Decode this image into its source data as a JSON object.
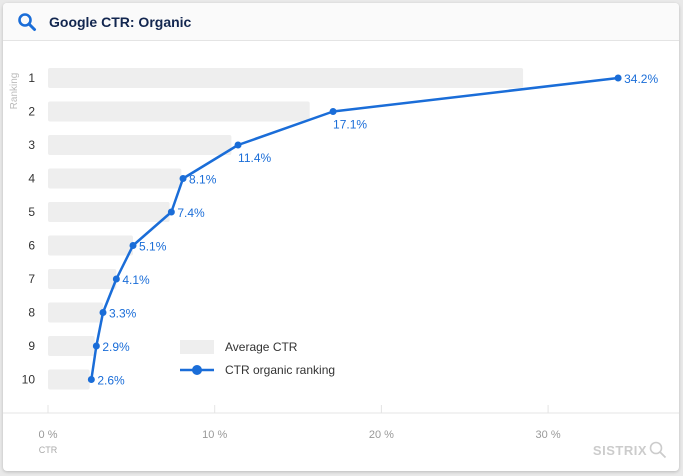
{
  "header": {
    "title": "Google CTR: Organic",
    "icon": "search-icon"
  },
  "brand": {
    "label": "SISTRIX",
    "icon": "magnifier-icon"
  },
  "chart_data": {
    "type": "bar+line",
    "orientation": "horizontal",
    "categories": [
      "1",
      "2",
      "3",
      "4",
      "5",
      "6",
      "7",
      "8",
      "9",
      "10"
    ],
    "series": [
      {
        "name": "Average CTR",
        "type": "bar",
        "color": "#eeeeee",
        "values": [
          28.5,
          15.7,
          11.0,
          8.0,
          7.3,
          5.1,
          4.1,
          3.3,
          2.8,
          2.5
        ]
      },
      {
        "name": "CTR organic ranking",
        "type": "line",
        "color": "#1a6dd8",
        "values": [
          34.2,
          17.1,
          11.4,
          8.1,
          7.4,
          5.1,
          4.1,
          3.3,
          2.9,
          2.6
        ],
        "labels": [
          "34.2%",
          "17.1%",
          "11.4%",
          "8.1%",
          "7.4%",
          "5.1%",
          "4.1%",
          "3.3%",
          "2.9%",
          "2.6%"
        ]
      }
    ],
    "xlabel": "CTR",
    "ylabel": "Ranking",
    "xlim": [
      0,
      37
    ],
    "xticks": [
      0,
      10,
      20,
      30
    ],
    "xtick_labels": [
      "0 %",
      "10 %",
      "20 %",
      "30 %"
    ],
    "legend": "bottom-center inside plot",
    "grid": false
  }
}
